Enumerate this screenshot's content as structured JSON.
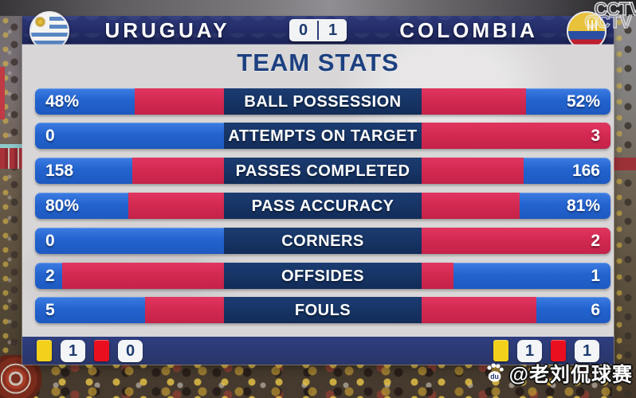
{
  "match": {
    "home_team": "URUGUAY",
    "away_team": "COLOMBIA",
    "score_home": "0",
    "score_away": "1"
  },
  "stats_panel": {
    "title": "TEAM STATS",
    "rows": [
      {
        "label": "BALL POSSESSION",
        "home_value": 48,
        "away_value": 52,
        "home_display": "48%",
        "away_display": "52%"
      },
      {
        "label": "ATTEMPTS ON TARGET",
        "home_value": 0,
        "away_value": 3,
        "home_display": "0",
        "away_display": "3"
      },
      {
        "label": "PASSES COMPLETED",
        "home_value": 158,
        "away_value": 166,
        "home_display": "158",
        "away_display": "166"
      },
      {
        "label": "PASS ACCURACY",
        "home_value": 80,
        "away_value": 81,
        "home_display": "80%",
        "away_display": "81%"
      },
      {
        "label": "CORNERS",
        "home_value": 0,
        "away_value": 2,
        "home_display": "0",
        "away_display": "2"
      },
      {
        "label": "OFFSIDES",
        "home_value": 2,
        "away_value": 1,
        "home_display": "2",
        "away_display": "1"
      },
      {
        "label": "FOULS",
        "home_value": 5,
        "away_value": 6,
        "home_display": "5",
        "away_display": "6"
      }
    ],
    "cards": {
      "home_yellow": "1",
      "home_red": "0",
      "away_yellow": "1",
      "away_red": "1"
    }
  },
  "watermarks": {
    "tv_logo": "CCTV",
    "channel_handle": "@老刘侃球赛",
    "paw_text": "du"
  },
  "colors": {
    "bar_blue": "#2363cf",
    "bar_red": "#d22950",
    "label_navy": "#122c58",
    "header_navy": "#232c66",
    "card_yellow": "#f2d11c",
    "card_red": "#ea0f1e"
  },
  "chart_data": {
    "type": "bar",
    "title": "TEAM STATS",
    "orientation": "horizontal-mirrored",
    "categories": [
      "BALL POSSESSION",
      "ATTEMPTS ON TARGET",
      "PASSES COMPLETED",
      "PASS ACCURACY",
      "CORNERS",
      "OFFSIDES",
      "FOULS"
    ],
    "series": [
      {
        "name": "URUGUAY",
        "values": [
          48,
          0,
          158,
          80,
          0,
          2,
          5
        ]
      },
      {
        "name": "COLOMBIA",
        "values": [
          52,
          3,
          166,
          81,
          2,
          1,
          6
        ]
      }
    ],
    "value_labels": [
      [
        "48%",
        "52%"
      ],
      [
        "0",
        "3"
      ],
      [
        "158",
        "166"
      ],
      [
        "80%",
        "81%"
      ],
      [
        "0",
        "2"
      ],
      [
        "2",
        "1"
      ],
      [
        "5",
        "6"
      ]
    ],
    "legend_position": "header",
    "grid": false
  }
}
